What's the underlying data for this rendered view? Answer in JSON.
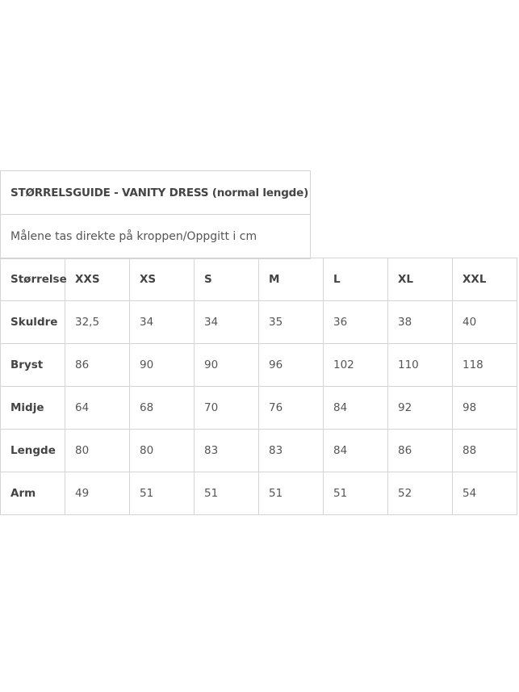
{
  "guide": {
    "title": "STØRRELSGUIDE - VANITY DRESS (normal lengde)",
    "subtitle": "Målene tas direkte på kroppen/Oppgitt i cm"
  },
  "table": {
    "headers": [
      "Størrelse",
      "XXS",
      "XS",
      "S",
      "M",
      "L",
      "XL",
      "XXL"
    ],
    "rows": [
      [
        "Skuldre",
        "32,5",
        "34",
        "34",
        "35",
        "36",
        "38",
        "40"
      ],
      [
        "Bryst",
        "86",
        "90",
        "90",
        "96",
        "102",
        "110",
        "118"
      ],
      [
        "Midje",
        "64",
        "68",
        "70",
        "76",
        "84",
        "92",
        "98"
      ],
      [
        "Lengde",
        "80",
        "80",
        "83",
        "83",
        "84",
        "86",
        "88"
      ],
      [
        "Arm",
        "49",
        "51",
        "51",
        "51",
        "51",
        "52",
        "54"
      ]
    ]
  }
}
